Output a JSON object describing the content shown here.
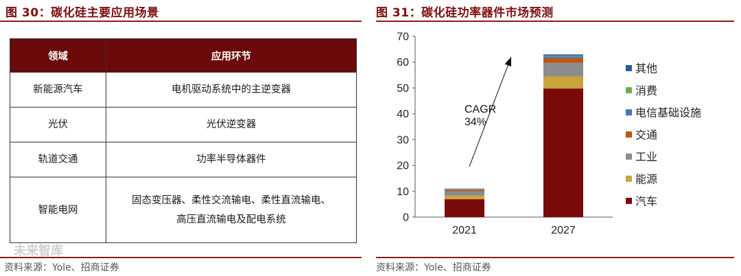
{
  "left": {
    "title": "图 30：碳化硅主要应用场景",
    "table": {
      "headers": [
        "领域",
        "应用环节"
      ],
      "rows": [
        [
          "新能源汽车",
          "电机驱动系统中的主逆变器"
        ],
        [
          "光伏",
          "光伏逆变器"
        ],
        [
          "轨道交通",
          "功率半导体器件"
        ],
        [
          "智能电网",
          "固态变压器、柔性交流输电、柔性直流输电、\n高压直流输电及配电系统"
        ]
      ]
    },
    "source": "资料来源：Yole、招商证券",
    "watermark": "未来智库"
  },
  "right": {
    "title": "图 31：碳化硅功率器件市场预测",
    "source": "资料来源：Yole、招商证券"
  },
  "chart_data": {
    "type": "bar",
    "stacked": true,
    "categories": [
      "2021",
      "2027"
    ],
    "series": [
      {
        "name": "汽车",
        "color": "#7a0a0a",
        "values": [
          6.9,
          49.8
        ]
      },
      {
        "name": "能源",
        "color": "#c9a43c",
        "values": [
          1.4,
          4.7
        ]
      },
      {
        "name": "工业",
        "color": "#8c8c8c",
        "values": [
          1.6,
          5.3
        ]
      },
      {
        "name": "交通",
        "color": "#c0560f",
        "values": [
          0.6,
          1.8
        ]
      },
      {
        "name": "电信基础设施",
        "color": "#4472c4",
        "values": [
          0.2,
          0.6
        ]
      },
      {
        "name": "消费",
        "color": "#70ad47",
        "values": [
          0.1,
          0.3
        ]
      },
      {
        "name": "其他",
        "color": "#2e5d9e",
        "values": [
          0.2,
          0.5
        ]
      }
    ],
    "ylim": [
      0,
      70
    ],
    "yticks": [
      0,
      10,
      20,
      30,
      40,
      50,
      60,
      70
    ],
    "annotation": {
      "line1": "CAGR",
      "line2": "34%"
    },
    "legend_position": "right",
    "grid": false
  }
}
